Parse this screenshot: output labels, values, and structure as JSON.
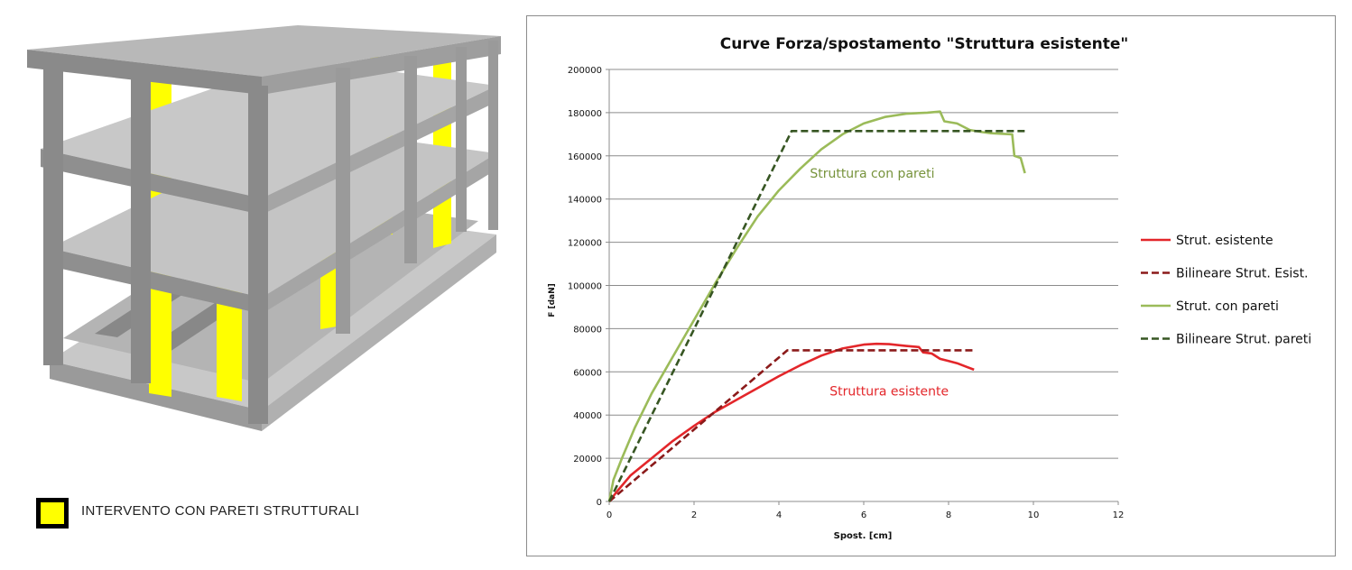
{
  "illustration": {
    "legend_label": "INTERVENTO CON PARETI STRUTTURALI",
    "legend_color": "#ffff00"
  },
  "chart_data": {
    "type": "line",
    "title": "Curve Forza/spostamento \"Struttura esistente\"",
    "xlabel": "Spost. [cm]",
    "ylabel": "F [daN]",
    "xlim": [
      0,
      12
    ],
    "ylim": [
      0,
      200000
    ],
    "x_ticks": [
      "0",
      "2",
      "4",
      "6",
      "8",
      "10",
      "12"
    ],
    "y_ticks": [
      "0",
      "20000",
      "40000",
      "60000",
      "80000",
      "100000",
      "120000",
      "140000",
      "160000",
      "180000",
      "200000"
    ],
    "grid": "horizontal",
    "legend_position": "right",
    "annotations": [
      {
        "text": "Struttura con pareti",
        "x": 6.2,
        "y": 150000,
        "color": "#77933c"
      },
      {
        "text": "Struttura esistente",
        "x": 6.6,
        "y": 49000,
        "color": "#e3262a"
      }
    ],
    "series": [
      {
        "name": "Strut. esistente",
        "color": "#e3262a",
        "dash": false,
        "x": [
          0,
          0.2,
          0.5,
          1,
          1.5,
          2,
          2.5,
          3,
          3.5,
          4,
          4.5,
          5,
          5.5,
          6,
          6.3,
          6.6,
          7,
          7.3,
          7.4,
          7.6,
          7.8,
          8.0,
          8.2,
          8.4,
          8.6
        ],
        "y": [
          0,
          5000,
          12000,
          20000,
          28000,
          35000,
          41500,
          47000,
          52500,
          58000,
          63000,
          67500,
          70800,
          72600,
          73000,
          72800,
          72000,
          71500,
          69000,
          68500,
          66000,
          65000,
          64000,
          62500,
          61000
        ]
      },
      {
        "name": "Bilineare Strut. Esist.",
        "color": "#8b1a1a",
        "dash": true,
        "x": [
          0,
          4.2,
          8.6
        ],
        "y": [
          0,
          70000,
          70000
        ]
      },
      {
        "name": "Strut. con pareti",
        "color": "#9bbb59",
        "dash": false,
        "x": [
          0,
          0.1,
          0.3,
          0.6,
          1,
          1.5,
          2,
          2.5,
          3,
          3.5,
          4,
          4.5,
          5,
          5.5,
          6,
          6.5,
          7,
          7.5,
          7.8,
          7.9,
          8.2,
          8.5,
          8.8,
          9.0,
          9.5,
          9.55,
          9.7,
          9.8
        ],
        "y": [
          0,
          10000,
          20000,
          34000,
          50000,
          67000,
          84000,
          101000,
          117000,
          132000,
          144000,
          154000,
          163000,
          170000,
          175000,
          178000,
          179500,
          180000,
          180500,
          176000,
          175000,
          172000,
          171000,
          170500,
          170000,
          160000,
          159000,
          152000
        ]
      },
      {
        "name": "Bilineare Strut. pareti",
        "color": "#375623",
        "dash": true,
        "x": [
          0,
          4.3,
          9.8
        ],
        "y": [
          0,
          171500,
          171500
        ]
      }
    ]
  }
}
